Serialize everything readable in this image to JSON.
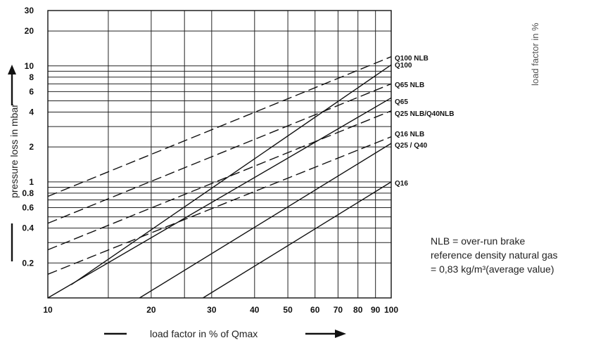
{
  "chart_data": {
    "type": "line",
    "x_scale": "log",
    "y_scale": "log",
    "xlim": [
      10,
      100
    ],
    "ylim": [
      0.1,
      30
    ],
    "grid": true,
    "xlabel": "load factor in % of Qmax",
    "ylabel": "pressure loss in mbar",
    "corner_text": "load factor in %",
    "x_ticks": [
      10,
      20,
      30,
      40,
      50,
      60,
      70,
      80,
      90,
      100
    ],
    "x_tick_labels": [
      "10",
      "20",
      "30",
      "40",
      "50",
      "60",
      "70",
      "80",
      "90",
      "100"
    ],
    "y_ticks": [
      0.2,
      0.4,
      0.6,
      0.8,
      1,
      2,
      4,
      6,
      8,
      10,
      20,
      30
    ],
    "y_tick_labels": [
      "0.2",
      "0.4",
      "0.6",
      "0.8",
      "1",
      "2",
      "4",
      "6",
      "8",
      "10",
      "20",
      "30"
    ],
    "x_gridlines": [
      10,
      15,
      20,
      25,
      30,
      40,
      50,
      60,
      70,
      80,
      90,
      100
    ],
    "y_gridlines": [
      0.1,
      0.2,
      0.3,
      0.4,
      0.5,
      0.6,
      0.7,
      0.8,
      0.9,
      1,
      2,
      3,
      4,
      5,
      6,
      7,
      8,
      9,
      10,
      20,
      30
    ],
    "series": [
      {
        "name": "Q100  NLB",
        "style": "dashed",
        "x": [
          10,
          100
        ],
        "y": [
          0.75,
          12
        ]
      },
      {
        "name": "Q100",
        "style": "solid",
        "x": [
          11.7,
          100
        ],
        "y": [
          0.13,
          10.2
        ]
      },
      {
        "name": "Q65  NLB",
        "style": "dashed",
        "x": [
          10,
          100
        ],
        "y": [
          0.44,
          7
        ]
      },
      {
        "name": "Q65",
        "style": "solid",
        "x": [
          10,
          100
        ],
        "y": [
          0.1,
          5.3
        ]
      },
      {
        "name": "Q25 NLB/Q40NLB",
        "style": "dashed",
        "x": [
          10,
          100
        ],
        "y": [
          0.26,
          4.1
        ]
      },
      {
        "name": "Q16  NLB",
        "style": "dashed",
        "x": [
          10,
          100
        ],
        "y": [
          0.16,
          2.45
        ]
      },
      {
        "name": "Q25 / Q40",
        "style": "solid",
        "x": [
          18.5,
          100
        ],
        "y": [
          0.1,
          2.15
        ]
      },
      {
        "name": "Q16",
        "style": "solid",
        "x": [
          28.3,
          100
        ],
        "y": [
          0.1,
          1.0
        ]
      }
    ]
  },
  "legend": {
    "line1": "NLB = over-run brake",
    "line2": "reference density natural gas",
    "line3": "= 0,83 kg/m³(average value)"
  }
}
